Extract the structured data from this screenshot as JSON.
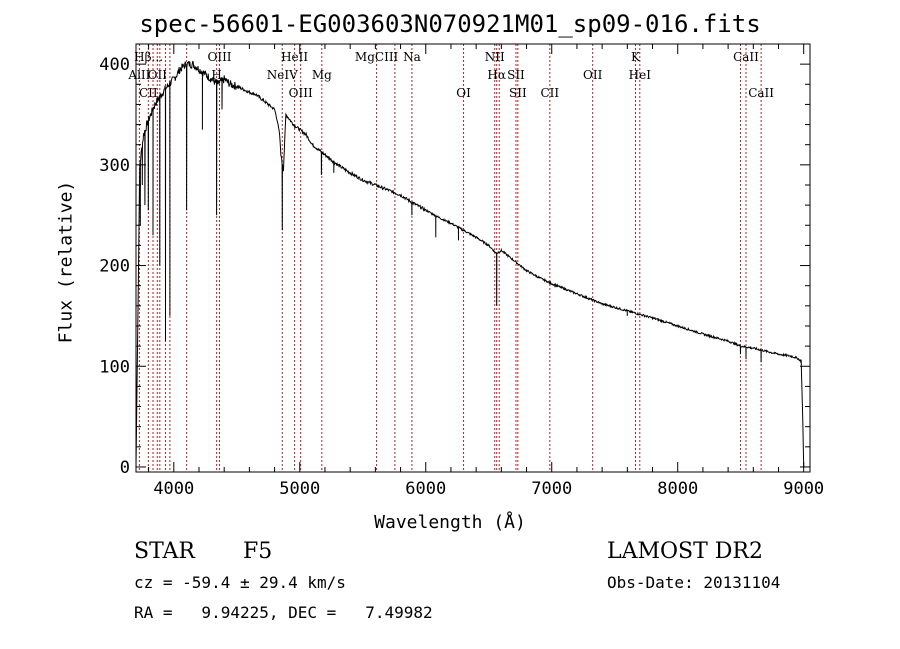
{
  "chart_data": {
    "type": "line",
    "title": "spec-56601-EG003603N070921M01_sp09-016.fits",
    "xlabel": "Wavelength (Å)",
    "ylabel": "Flux (relative)",
    "xlim": [
      3700,
      9050
    ],
    "ylim": [
      -5,
      420
    ],
    "xticks": [
      4000,
      5000,
      6000,
      7000,
      8000,
      9000
    ],
    "yticks": [
      0,
      100,
      200,
      300,
      400
    ],
    "series": [
      {
        "color": "#000000",
        "x": [
          3700,
          3715,
          3730,
          3760,
          3800,
          3850,
          3900,
          3950,
          4000,
          4050,
          4100,
          4150,
          4200,
          4250,
          4300,
          4350,
          4400,
          4450,
          4500,
          4550,
          4600,
          4650,
          4700,
          4750,
          4800,
          4820,
          4840,
          4850,
          4870,
          4890,
          4920,
          4950,
          5000,
          5050,
          5100,
          5150,
          5200,
          5250,
          5300,
          5400,
          5500,
          5600,
          5700,
          5800,
          5900,
          6000,
          6100,
          6200,
          6300,
          6400,
          6500,
          6560,
          6600,
          6700,
          6800,
          6900,
          7000,
          7200,
          7400,
          7600,
          7800,
          8000,
          8200,
          8400,
          8500,
          8600,
          8700,
          8800,
          8900,
          8950,
          8980,
          8990,
          9000
        ],
        "y": [
          0,
          150,
          300,
          330,
          345,
          360,
          370,
          378,
          385,
          395,
          400,
          400,
          395,
          390,
          385,
          380,
          385,
          380,
          378,
          375,
          372,
          370,
          365,
          360,
          355,
          345,
          330,
          310,
          295,
          350,
          345,
          340,
          335,
          330,
          320,
          315,
          310,
          305,
          300,
          292,
          285,
          280,
          275,
          270,
          262,
          255,
          248,
          242,
          235,
          228,
          220,
          212,
          215,
          205,
          195,
          188,
          182,
          172,
          162,
          155,
          148,
          140,
          132,
          125,
          120,
          118,
          115,
          112,
          110,
          108,
          105,
          60,
          0
        ]
      }
    ],
    "absorption": [
      {
        "x": 3734,
        "y": 240
      },
      {
        "x": 3750,
        "y": 280
      },
      {
        "x": 3771,
        "y": 260
      },
      {
        "x": 3798,
        "y": 255
      },
      {
        "x": 3835,
        "y": 230
      },
      {
        "x": 3889,
        "y": 200
      },
      {
        "x": 3934,
        "y": 125
      },
      {
        "x": 3969,
        "y": 150
      },
      {
        "x": 4102,
        "y": 255
      },
      {
        "x": 4227,
        "y": 335
      },
      {
        "x": 4340,
        "y": 250
      },
      {
        "x": 4383,
        "y": 355
      },
      {
        "x": 4861,
        "y": 235
      },
      {
        "x": 5172,
        "y": 290
      },
      {
        "x": 5270,
        "y": 292
      },
      {
        "x": 5890,
        "y": 250
      },
      {
        "x": 6080,
        "y": 228
      },
      {
        "x": 6260,
        "y": 225
      },
      {
        "x": 6563,
        "y": 160
      },
      {
        "x": 7600,
        "y": 150
      },
      {
        "x": 8498,
        "y": 112
      },
      {
        "x": 8542,
        "y": 107
      },
      {
        "x": 8662,
        "y": 104
      }
    ],
    "reference_lines": {
      "color": "#b22222",
      "x": [
        3727,
        3798,
        3835,
        3869,
        3889,
        3934,
        3969,
        4102,
        4340,
        4363,
        4861,
        4959,
        5007,
        5175,
        5610,
        5755,
        5890,
        6300,
        6548,
        6563,
        6583,
        6716,
        6731,
        6985,
        7325,
        7665,
        7699,
        8498,
        8542,
        8662
      ]
    },
    "annotations": [
      {
        "text": "Hβ... ",
        "x": 3800,
        "row": 1
      },
      {
        "text": "OIII",
        "x": 4363,
        "row": 1
      },
      {
        "text": "HeII",
        "x": 4959,
        "row": 1
      },
      {
        "text": "MgCIII",
        "x": 5610,
        "row": 1
      },
      {
        "text": "Na",
        "x": 5890,
        "row": 1
      },
      {
        "text": "NII",
        "x": 6548,
        "row": 1
      },
      {
        "text": "K",
        "x": 7665,
        "row": 1
      },
      {
        "text": "CaII",
        "x": 8542,
        "row": 1
      },
      {
        "text": "AlII",
        "x": 3727,
        "row": 2
      },
      {
        "text": "OII",
        "x": 3869,
        "row": 2
      },
      {
        "text": "H",
        "x": 4340,
        "row": 2
      },
      {
        "text": "NeIV",
        "x": 4861,
        "row": 2
      },
      {
        "text": "Mg",
        "x": 5175,
        "row": 2
      },
      {
        "text": "Hα",
        "x": 6563,
        "row": 2
      },
      {
        "text": "SII",
        "x": 6716,
        "row": 2
      },
      {
        "text": "OII",
        "x": 7325,
        "row": 2
      },
      {
        "text": "HeI",
        "x": 7699,
        "row": 2
      },
      {
        "text": "CII",
        "x": 3798,
        "row": 3
      },
      {
        "text": "OIII",
        "x": 5007,
        "row": 3
      },
      {
        "text": "OI",
        "x": 6300,
        "row": 3
      },
      {
        "text": "SII",
        "x": 6731,
        "row": 3
      },
      {
        "text": "CII",
        "x": 6985,
        "row": 3
      },
      {
        "text": "CaII",
        "x": 8662,
        "row": 3
      }
    ],
    "grid": false,
    "legend": "none"
  },
  "info": {
    "star_label": "STAR",
    "spectral_type": "F5",
    "survey": "LAMOST DR2",
    "cz": "cz = -59.4 ± 29.4 km/s",
    "obs_date": "Obs-Date: 20131104",
    "coords": "RA =   9.94225, DEC =   7.49982"
  }
}
